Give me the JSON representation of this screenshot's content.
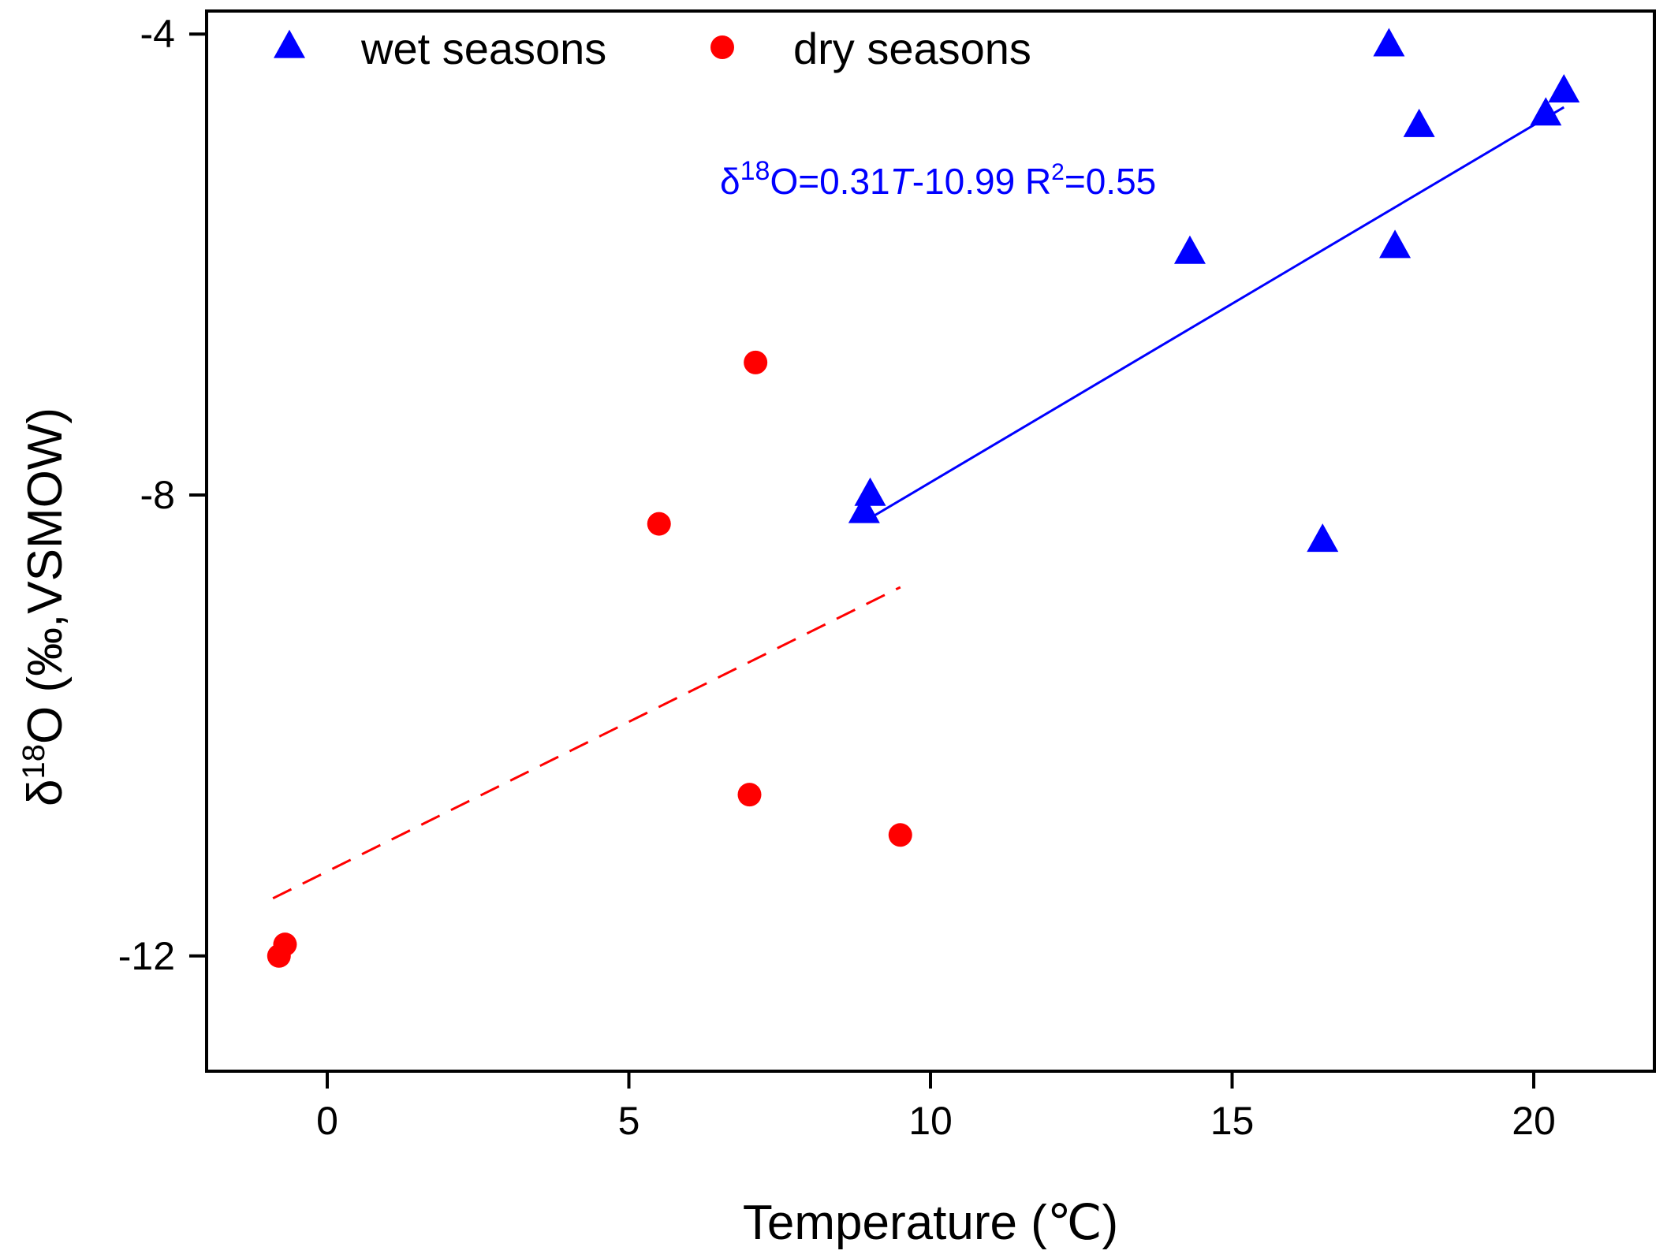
{
  "chart_data": {
    "type": "scatter",
    "title": "",
    "xlabel": "Temperature (℃)",
    "ylabel": "δ¹⁸O (‰,VSMOW)",
    "ylabel_parts": {
      "delta": "δ",
      "sup": "18",
      "rest": "O (‰,VSMOW)"
    },
    "xlim": [
      -2,
      22
    ],
    "ylim": [
      -13,
      -3.8
    ],
    "xticks": [
      0,
      5,
      10,
      15,
      20
    ],
    "yticks": [
      -4,
      -8,
      -12
    ],
    "xtick_labels": [
      "0",
      "5",
      "10",
      "15",
      "20"
    ],
    "ytick_labels": [
      "-4",
      "-8",
      "-12"
    ],
    "legend_position": "top-left",
    "series": [
      {
        "name": "wet seasons",
        "marker": "triangle",
        "color": "#0000ff",
        "points": [
          {
            "x": 17.6,
            "y": -4.1
          },
          {
            "x": 20.5,
            "y": -4.5
          },
          {
            "x": 20.2,
            "y": -4.7
          },
          {
            "x": 18.1,
            "y": -4.8
          },
          {
            "x": 14.3,
            "y": -5.9
          },
          {
            "x": 17.7,
            "y": -5.85
          },
          {
            "x": 9.0,
            "y": -8.0
          },
          {
            "x": 8.9,
            "y": -8.15
          },
          {
            "x": 16.5,
            "y": -8.4
          }
        ],
        "fit": {
          "x_range": [
            8.9,
            20.5
          ],
          "slope": 0.31,
          "intercept": -10.99,
          "style": "solid",
          "equation_parts": {
            "lead": "δ",
            "sup1": "18",
            "mid": "O=0.31",
            "var": "T",
            "tail": "-10.99 R",
            "sup2": "2",
            "end": "=0.55"
          }
        }
      },
      {
        "name": "dry seasons",
        "marker": "circle",
        "color": "#ff0000",
        "points": [
          {
            "x": 7.1,
            "y": -6.85
          },
          {
            "x": 5.5,
            "y": -8.25
          },
          {
            "x": 7.0,
            "y": -10.6
          },
          {
            "x": 9.5,
            "y": -10.95
          },
          {
            "x": -0.7,
            "y": -11.9
          },
          {
            "x": -0.8,
            "y": -12.0
          }
        ],
        "fit": {
          "x_range": [
            -0.9,
            9.5
          ],
          "y_range": [
            -11.5,
            -8.8
          ],
          "style": "dashed"
        }
      }
    ]
  }
}
